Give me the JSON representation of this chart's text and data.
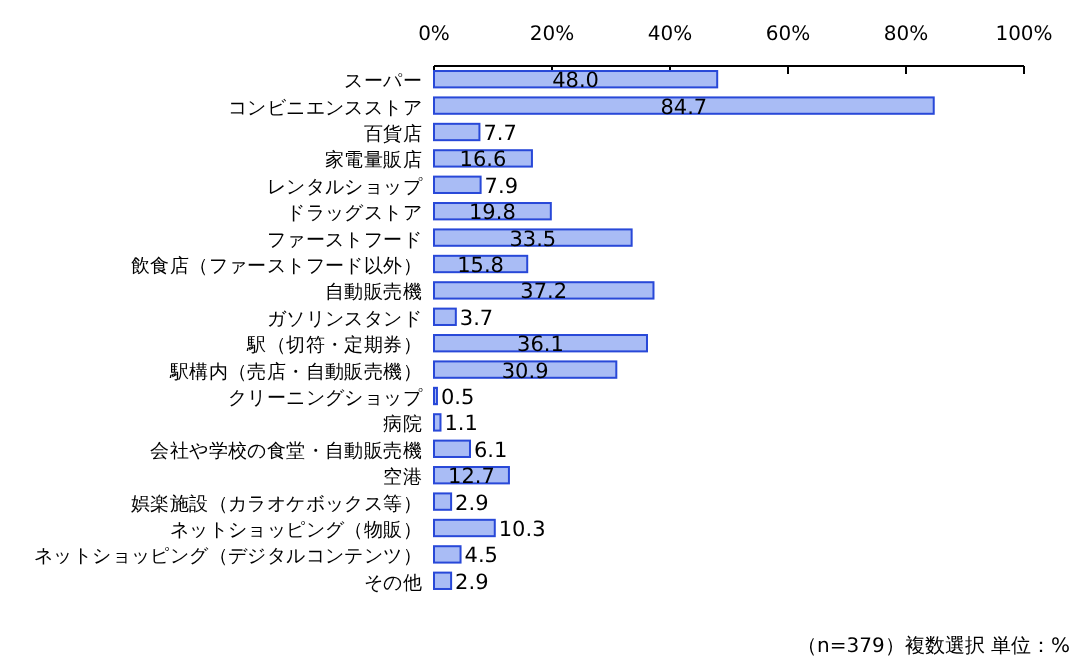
{
  "chart_data": {
    "type": "bar",
    "orientation": "horizontal",
    "categories": [
      "スーパー",
      "コンビニエンスストア",
      "百貨店",
      "家電量販店",
      "レンタルショップ",
      "ドラッグストア",
      "ファーストフード",
      "飲食店（ファーストフード以外）",
      "自動販売機",
      "ガソリンスタンド",
      "駅（切符・定期券）",
      "駅構内（売店・自動販売機）",
      "クリーニングショップ",
      "病院",
      "会社や学校の食堂・自動販売機",
      "空港",
      "娯楽施設（カラオケボックス等）",
      "ネットショッピング（物販）",
      "ネットショッピング（デジタルコンテンツ）",
      "その他"
    ],
    "values": [
      48.0,
      84.7,
      7.7,
      16.6,
      7.9,
      19.8,
      33.5,
      15.8,
      37.2,
      3.7,
      36.1,
      30.9,
      0.5,
      1.1,
      6.1,
      12.7,
      2.9,
      10.3,
      4.5,
      2.9
    ],
    "value_labels": [
      "48.0",
      "84.7",
      "7.7",
      "16.6",
      "7.9",
      "19.8",
      "33.5",
      "15.8",
      "37.2",
      "3.7",
      "36.1",
      "30.9",
      "0.5",
      "1.1",
      "6.1",
      "12.7",
      "2.9",
      "10.3",
      "4.5",
      "2.9"
    ],
    "color": "#a9bcf5",
    "xlim": [
      0,
      100
    ],
    "xticks": [
      {
        "value": 0,
        "label": "0%"
      },
      {
        "value": 20,
        "label": "20%"
      },
      {
        "value": 40,
        "label": "40%"
      },
      {
        "value": 60,
        "label": "60%"
      },
      {
        "value": 80,
        "label": "80%"
      },
      {
        "value": 100,
        "label": "100%"
      }
    ],
    "annotations": [
      "（n=379）複数選択  単位：%"
    ]
  }
}
